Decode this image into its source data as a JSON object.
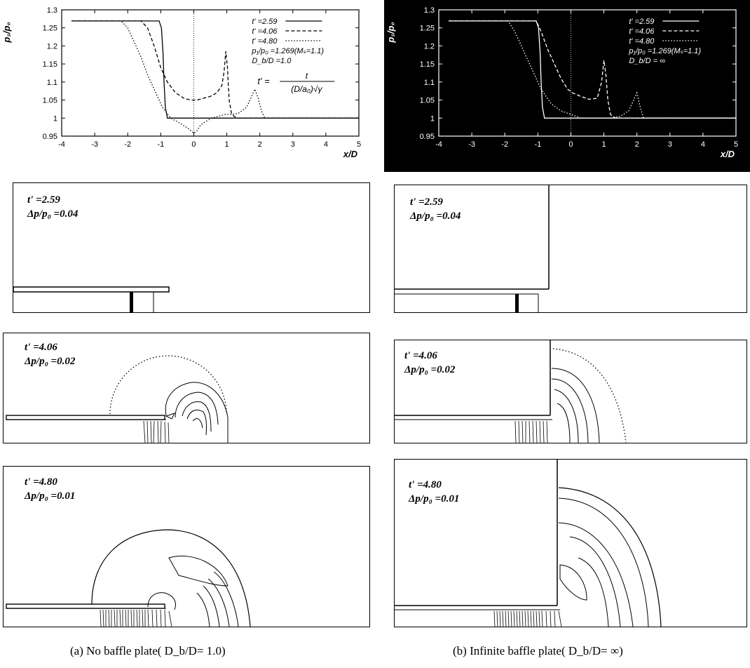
{
  "charts": [
    {
      "type": "line",
      "ylabel": "p₁/p₀",
      "xlabel": "x/D",
      "xlim": [
        -4,
        5
      ],
      "ylim": [
        0.95,
        1.3
      ],
      "xticks": [
        "-4",
        "-3",
        "-2",
        "-1",
        "0",
        "1",
        "2",
        "3",
        "4",
        "5"
      ],
      "yticks": [
        "0.95",
        "1",
        "1.05",
        "1.1",
        "1.15",
        "1.2",
        "1.25",
        "1.3"
      ],
      "legend": [
        "t' =2.59",
        "t' =4.06",
        "t' =4.80"
      ],
      "annotations": [
        "p₁/p₀ =1.269(Mₛ=1.1)",
        "D_b/D =1.0",
        "t' =",
        "t",
        "(D/a₀)√γ"
      ],
      "theme": {
        "background": "#ffffff",
        "ink": "#000000"
      },
      "series": [
        {
          "name": "t' =2.59",
          "dash": "solid",
          "x": [
            -3.7,
            -1.05,
            -0.98,
            -0.93,
            -0.9,
            -0.86,
            -0.8,
            5
          ],
          "y": [
            1.269,
            1.269,
            1.25,
            1.18,
            1.1,
            1.03,
            1.0,
            1.0
          ]
        },
        {
          "name": "t' =4.06",
          "dash": "dash",
          "x": [
            -3.7,
            -1.6,
            -1.4,
            -1.2,
            -1.0,
            -0.8,
            -0.55,
            -0.3,
            -0.1,
            0.1,
            0.3,
            0.5,
            0.7,
            0.85,
            0.92,
            0.97,
            1.02,
            1.07,
            1.15,
            1.3,
            5
          ],
          "y": [
            1.269,
            1.269,
            1.25,
            1.2,
            1.14,
            1.1,
            1.07,
            1.055,
            1.05,
            1.05,
            1.055,
            1.06,
            1.07,
            1.09,
            1.13,
            1.185,
            1.14,
            1.05,
            1.01,
            1.0,
            1.0
          ]
        },
        {
          "name": "t' =4.80",
          "dash": "dot",
          "x": [
            -3.7,
            -2.2,
            -2.0,
            -1.8,
            -1.6,
            -1.4,
            -1.2,
            -0.95,
            -0.7,
            -0.4,
            -0.15,
            0.0,
            0.1,
            0.2,
            0.35,
            0.55,
            0.75,
            0.95,
            1.15,
            1.35,
            1.6,
            1.75,
            1.85,
            1.95,
            2.05,
            2.15,
            5
          ],
          "y": [
            1.269,
            1.269,
            1.25,
            1.21,
            1.17,
            1.12,
            1.08,
            1.03,
            1.0,
            0.985,
            0.97,
            0.958,
            0.965,
            0.98,
            0.99,
            1.0,
            1.005,
            1.01,
            1.01,
            1.013,
            1.03,
            1.06,
            1.08,
            1.055,
            1.02,
            1.0,
            1.0
          ]
        }
      ]
    },
    {
      "type": "line",
      "ylabel": "p₁/p₀",
      "xlabel": "x/D",
      "xlim": [
        -4,
        5
      ],
      "ylim": [
        0.95,
        1.3
      ],
      "xticks": [
        "-4",
        "-3",
        "-2",
        "-1",
        "0",
        "1",
        "2",
        "3",
        "4",
        "5"
      ],
      "yticks": [
        "0.95",
        "1",
        "1.05",
        "1.1",
        "1.15",
        "1.2",
        "1.25",
        "1.3"
      ],
      "legend": [
        "t' =2.59",
        "t' =4.06",
        "t' =4.80"
      ],
      "annotations": [
        "p₁/p₀ =1.269(Mₛ=1.1)",
        "D_b/D = ∞"
      ],
      "theme": {
        "background": "#000000",
        "ink": "#ffffff"
      },
      "series": [
        {
          "name": "t' =2.59",
          "dash": "solid",
          "x": [
            -3.7,
            -1.05,
            -0.98,
            -0.93,
            -0.9,
            -0.86,
            -0.8,
            5
          ],
          "y": [
            1.269,
            1.269,
            1.25,
            1.18,
            1.1,
            1.03,
            1.0,
            1.0
          ]
        },
        {
          "name": "t' =4.06",
          "dash": "dash",
          "x": [
            -3.7,
            -1.05,
            -0.9,
            -0.7,
            -0.5,
            -0.3,
            -0.1,
            0.05,
            0.3,
            0.55,
            0.8,
            0.93,
            1.0,
            1.06,
            1.12,
            1.2,
            1.35,
            5
          ],
          "y": [
            1.269,
            1.269,
            1.24,
            1.19,
            1.15,
            1.11,
            1.08,
            1.07,
            1.06,
            1.052,
            1.055,
            1.1,
            1.16,
            1.12,
            1.05,
            1.01,
            1.0,
            1.0
          ]
        },
        {
          "name": "t' =4.80",
          "dash": "dot",
          "x": [
            -3.7,
            -1.9,
            -1.7,
            -1.5,
            -1.3,
            -1.1,
            -0.9,
            -0.6,
            -0.3,
            0.0,
            0.3,
            0.6,
            0.9,
            1.2,
            1.5,
            1.75,
            1.9,
            2.0,
            2.1,
            2.2,
            5
          ],
          "y": [
            1.269,
            1.269,
            1.24,
            1.2,
            1.16,
            1.12,
            1.08,
            1.04,
            1.02,
            1.01,
            1.0,
            1.0,
            1.0,
            1.0,
            1.005,
            1.02,
            1.05,
            1.07,
            1.03,
            1.0,
            1.0
          ]
        }
      ]
    }
  ],
  "panels": {
    "a": [
      {
        "t": "t' =2.59",
        "dp": "Δp/p₀ =0.04"
      },
      {
        "t": "t' =4.06",
        "dp": "Δp/p₀ =0.02"
      },
      {
        "t": "t' =4.80",
        "dp": "Δp/p₀ =0.01"
      }
    ],
    "b": [
      {
        "t": "t' =2.59",
        "dp": "Δp/p₀ =0.04"
      },
      {
        "t": "t' =4.06",
        "dp": "Δp/p₀ =0.02"
      },
      {
        "t": "t' =4.80",
        "dp": "Δp/p₀ =0.01"
      }
    ]
  },
  "captions": {
    "a": "(a)  No baffle plate( D_b/D= 1.0)",
    "b": "(b)  Infinite baffle plate( D_b/D= ∞)"
  }
}
